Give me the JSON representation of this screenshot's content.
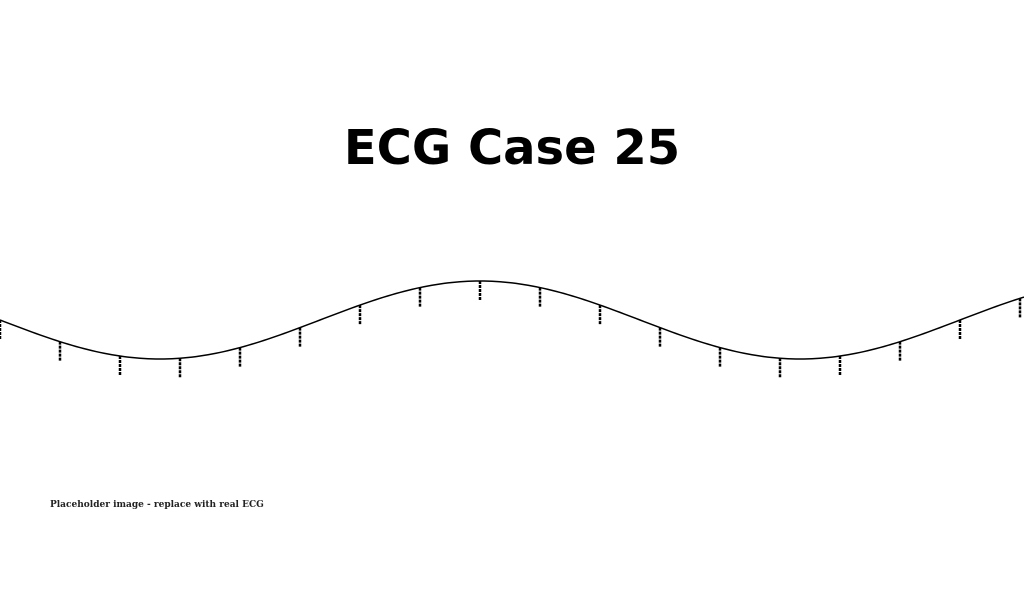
{
  "page": {
    "title": "ECG Case 25",
    "caption": "Placeholder image - replace with real ECG"
  },
  "trace": {
    "stroke_color": "#000000",
    "tick_count": 18
  }
}
